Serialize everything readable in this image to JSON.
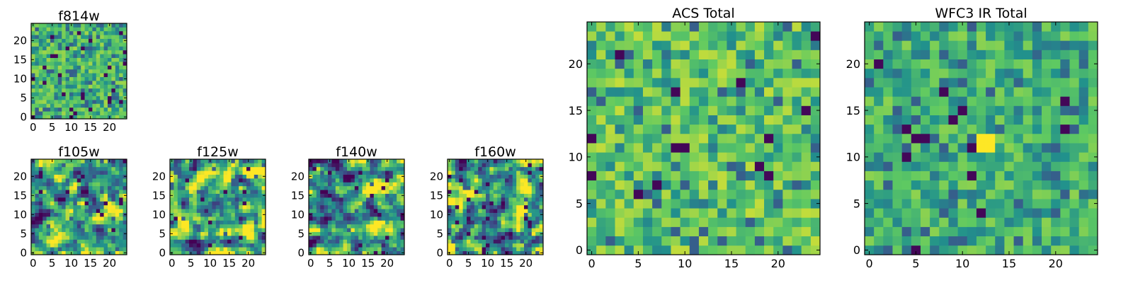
{
  "figure": {
    "colormap": "viridis",
    "colormap_stops": [
      "#440154",
      "#3b528b",
      "#21918c",
      "#5ec962",
      "#fde725"
    ],
    "value_range": [
      0,
      1
    ]
  },
  "chart_data": [
    {
      "type": "heatmap",
      "title": "f814w",
      "size": 25,
      "xlim": [
        0,
        24
      ],
      "ylim": [
        0,
        24
      ],
      "xticks": [
        0,
        5,
        10,
        15,
        20
      ],
      "yticks": [
        0,
        5,
        10,
        15,
        20
      ],
      "seed": 814,
      "texture": "noise",
      "bias": 0.62,
      "dark_fraction": 0.035
    },
    {
      "type": "heatmap",
      "title": "f105w",
      "size": 25,
      "xlim": [
        0,
        24
      ],
      "ylim": [
        0,
        24
      ],
      "xticks": [
        0,
        5,
        10,
        15,
        20
      ],
      "yticks": [
        0,
        5,
        10,
        15,
        20
      ],
      "seed": 105,
      "texture": "smooth",
      "bias": 0.6,
      "dark_fraction": 0.02
    },
    {
      "type": "heatmap",
      "title": "f125w",
      "size": 25,
      "xlim": [
        0,
        24
      ],
      "ylim": [
        0,
        24
      ],
      "xticks": [
        0,
        5,
        10,
        15,
        20
      ],
      "yticks": [
        0,
        5,
        10,
        15,
        20
      ],
      "seed": 125,
      "texture": "smooth",
      "bias": 0.66,
      "dark_fraction": 0.015
    },
    {
      "type": "heatmap",
      "title": "f140w",
      "size": 25,
      "xlim": [
        0,
        24
      ],
      "ylim": [
        0,
        24
      ],
      "xticks": [
        0,
        5,
        10,
        15,
        20
      ],
      "yticks": [
        0,
        5,
        10,
        15,
        20
      ],
      "seed": 140,
      "texture": "smooth",
      "bias": 0.58,
      "dark_fraction": 0.02
    },
    {
      "type": "heatmap",
      "title": "f160w",
      "size": 25,
      "xlim": [
        0,
        24
      ],
      "ylim": [
        0,
        24
      ],
      "xticks": [
        0,
        5,
        10,
        15,
        20
      ],
      "yticks": [
        0,
        5,
        10,
        15,
        20
      ],
      "seed": 160,
      "texture": "smooth",
      "bias": 0.6,
      "dark_fraction": 0.03
    },
    {
      "type": "heatmap",
      "title": "ACS Total",
      "size": 25,
      "xlim": [
        0,
        24
      ],
      "ylim": [
        0,
        24
      ],
      "xticks": [
        0,
        5,
        10,
        15,
        20
      ],
      "yticks": [
        0,
        5,
        10,
        15,
        20
      ],
      "seed": 7,
      "texture": "noise",
      "bias": 0.72,
      "dark_fraction": 0.02
    },
    {
      "type": "heatmap",
      "title": "WFC3 IR Total",
      "size": 25,
      "xlim": [
        0,
        24
      ],
      "ylim": [
        0,
        24
      ],
      "xticks": [
        0,
        5,
        10,
        15,
        20
      ],
      "yticks": [
        0,
        5,
        10,
        15,
        20
      ],
      "seed": 31,
      "texture": "noise",
      "bias": 0.55,
      "dark_fraction": 0.02,
      "bright_block": {
        "x": [
          12,
          13
        ],
        "y": [
          11,
          12
        ]
      }
    }
  ]
}
